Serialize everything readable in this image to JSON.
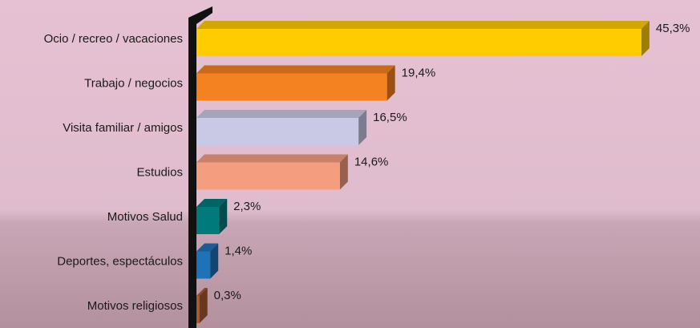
{
  "chart_data": {
    "type": "bar3d-horizontal",
    "categories": [
      "Ocio / recreo / vacaciones",
      "Trabajo / negocios",
      "Visita familiar / amigos",
      "Estudios",
      "Motivos Salud",
      "Deportes, espectáculos",
      "Motivos religiosos"
    ],
    "values": [
      45.3,
      19.4,
      16.5,
      14.6,
      2.3,
      1.4,
      0.3
    ],
    "value_labels": [
      "45,3%",
      "19,4%",
      "16,5%",
      "14,6%",
      "2,3%",
      "1,4%",
      "0,3%"
    ],
    "colors": [
      "#ffcc00",
      "#f58220",
      "#c9c9e6",
      "#f59d7f",
      "#007a7a",
      "#1e72b8",
      "#a85a30"
    ]
  }
}
